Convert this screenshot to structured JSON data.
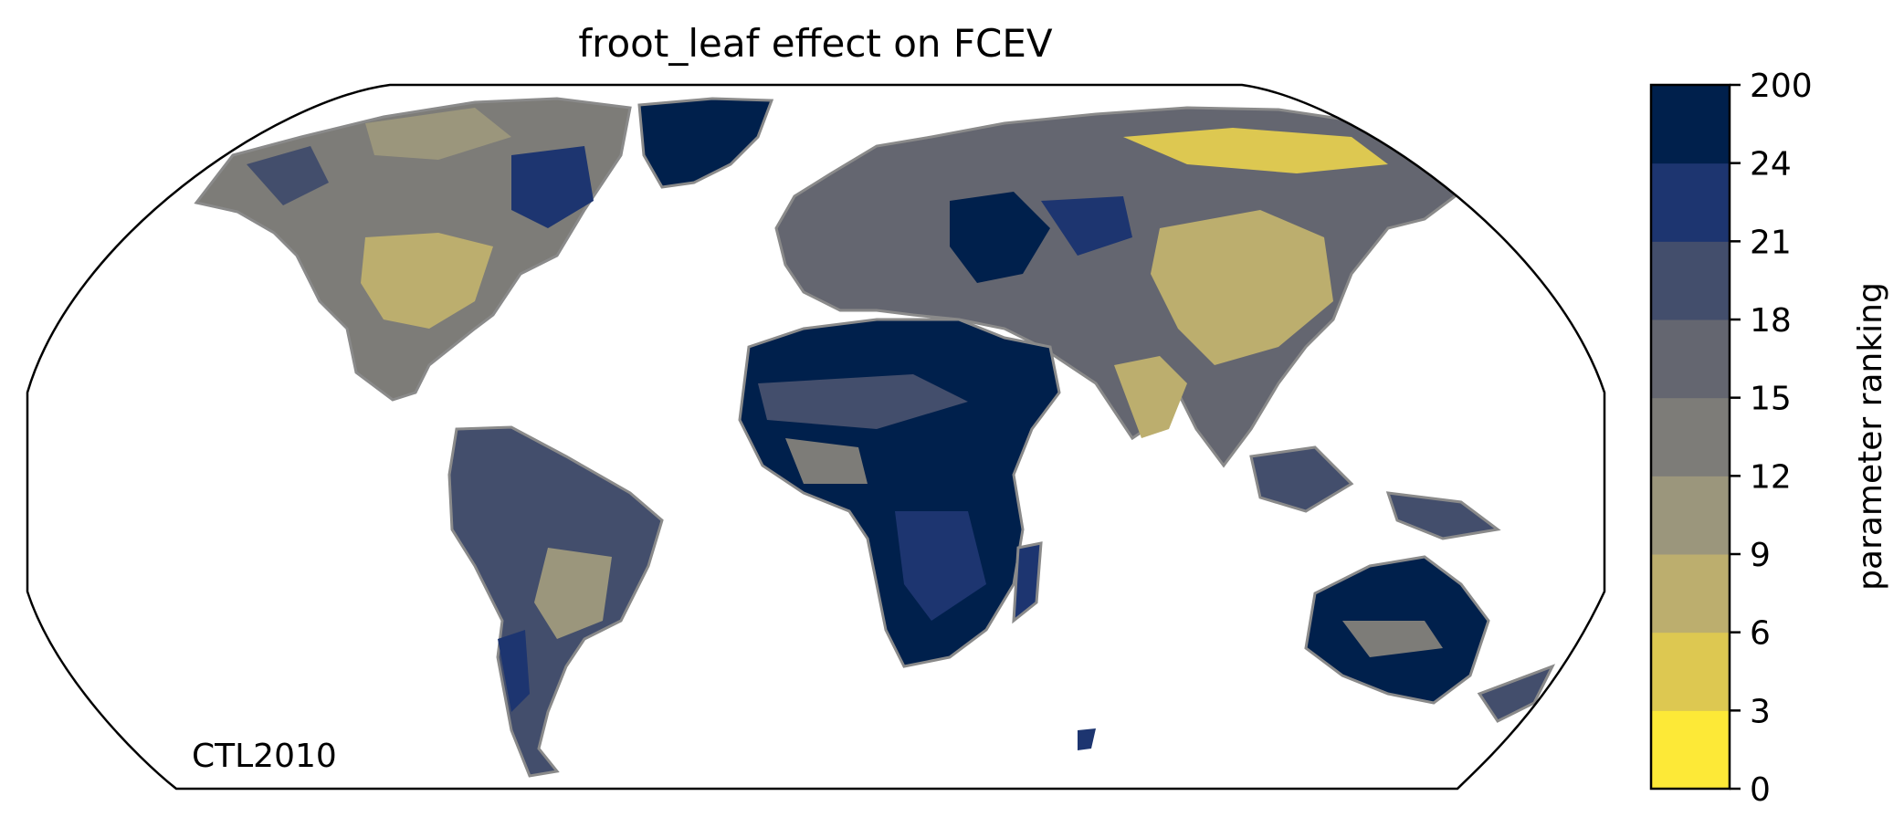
{
  "map": {
    "title": "froot_leaf effect on FCEV",
    "annotation": "CTL2010",
    "projection": "robinson",
    "land_outline_color": "#8a8a8a",
    "background_color": "#ffffff"
  },
  "colorbar": {
    "label": "parameter ranking",
    "orientation": "vertical",
    "ticks": [
      "0",
      "3",
      "6",
      "9",
      "12",
      "15",
      "18",
      "21",
      "24",
      "200"
    ],
    "bins": [
      {
        "from": 0,
        "to": 3,
        "color": "#fde937"
      },
      {
        "from": 3,
        "to": 6,
        "color": "#ddc851"
      },
      {
        "from": 6,
        "to": 9,
        "color": "#bcae6e"
      },
      {
        "from": 9,
        "to": 12,
        "color": "#9b967c"
      },
      {
        "from": 12,
        "to": 15,
        "color": "#7d7c78"
      },
      {
        "from": 15,
        "to": 18,
        "color": "#646670"
      },
      {
        "from": 18,
        "to": 21,
        "color": "#434e6c"
      },
      {
        "from": 21,
        "to": 24,
        "color": "#1d3570"
      },
      {
        "from": 24,
        "to": 200,
        "color": "#00204c"
      }
    ]
  }
}
